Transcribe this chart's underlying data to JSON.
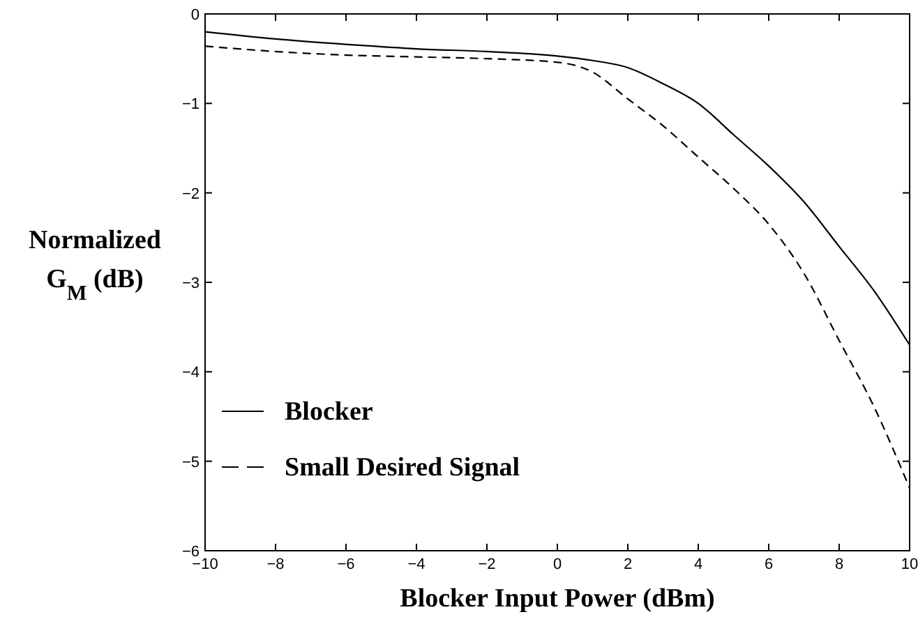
{
  "chart_data": {
    "type": "line",
    "xlabel": "Blocker Input Power (dBm)",
    "ylabel": "Normalized G$_{M}$ (dB)",
    "xlim": [
      -10,
      10
    ],
    "ylim": [
      -6,
      0
    ],
    "xticks": [
      -10,
      -8,
      -6,
      -4,
      -2,
      0,
      2,
      4,
      6,
      8,
      10
    ],
    "yticks": [
      -6,
      -5,
      -4,
      -3,
      -2,
      -1,
      0
    ],
    "x": [
      -10,
      -8,
      -6,
      -4,
      -2,
      0,
      1,
      2,
      3,
      4,
      5,
      6,
      7,
      8,
      9,
      10
    ],
    "legend": "bottom left",
    "grid": false,
    "series": [
      {
        "name": "Blocker",
        "color": "#000000",
        "line_style": "solid",
        "values": [
          -0.2,
          -0.28,
          -0.34,
          -0.39,
          -0.42,
          -0.47,
          -0.52,
          -0.6,
          -0.78,
          -1.0,
          -1.35,
          -1.7,
          -2.1,
          -2.6,
          -3.1,
          -3.7
        ]
      },
      {
        "name": "Small Desired Signal",
        "color": "#000000",
        "line_style": "dashed",
        "values": [
          -0.36,
          -0.42,
          -0.46,
          -0.48,
          -0.5,
          -0.54,
          -0.65,
          -0.95,
          -1.25,
          -1.6,
          -1.95,
          -2.35,
          -2.9,
          -3.65,
          -4.4,
          -5.3
        ]
      }
    ]
  }
}
